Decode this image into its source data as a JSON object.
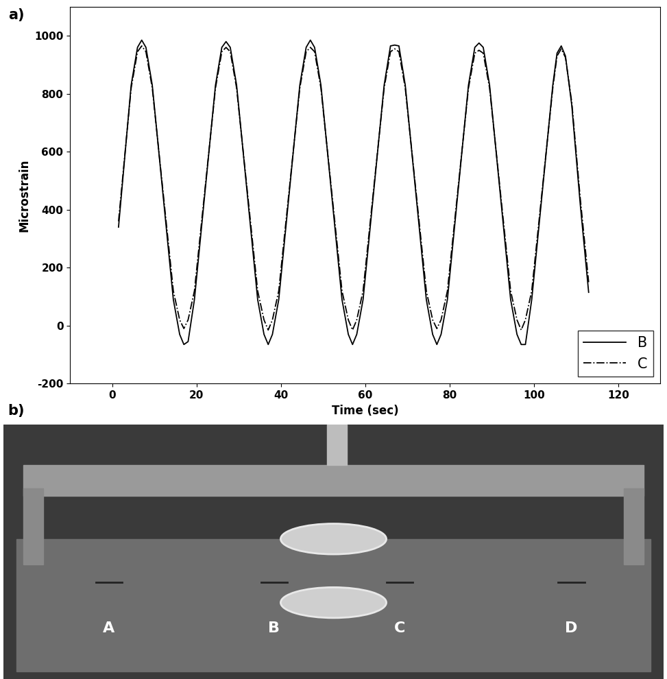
{
  "chart_data": {
    "type": "line",
    "xlabel": "Time (sec)",
    "ylabel": "Microstrain",
    "x": [
      1.5,
      4.5,
      6,
      7,
      8,
      9.5,
      12,
      14.5,
      16,
      17,
      18,
      19.5,
      22,
      24.5,
      26,
      27,
      28,
      29.5,
      32,
      34.5,
      36,
      37,
      38,
      39.5,
      42,
      44.5,
      46,
      47,
      48,
      49.5,
      52,
      54.5,
      56,
      57,
      58,
      59.5,
      62,
      64.5,
      66,
      67,
      68,
      69.5,
      72,
      74.5,
      76,
      77,
      78,
      79.5,
      82,
      84.5,
      86,
      87,
      88,
      89.5,
      92,
      94.5,
      96,
      97,
      98,
      99.5,
      102,
      104.5,
      105.5,
      106.5,
      107.5,
      109,
      111,
      113
    ],
    "series": [
      {
        "name": "B",
        "color": "#000000",
        "line_style": "solid",
        "values": [
          340,
          830,
          960,
          985,
          960,
          830,
          460,
          90,
          -30,
          -65,
          -55,
          90,
          460,
          830,
          960,
          980,
          960,
          830,
          460,
          90,
          -30,
          -65,
          -30,
          90,
          460,
          830,
          960,
          985,
          960,
          830,
          460,
          90,
          -30,
          -65,
          -30,
          90,
          460,
          830,
          965,
          968,
          965,
          830,
          460,
          90,
          -30,
          -65,
          -30,
          90,
          460,
          830,
          960,
          975,
          960,
          830,
          460,
          90,
          -30,
          -65,
          -65,
          90,
          460,
          830,
          940,
          965,
          930,
          760,
          420,
          115
        ]
      },
      {
        "name": "C",
        "color": "#000000",
        "line_style": "dashdot",
        "values": [
          360,
          820,
          945,
          965,
          945,
          820,
          470,
          120,
          20,
          -10,
          20,
          120,
          470,
          820,
          945,
          960,
          945,
          820,
          470,
          120,
          20,
          -15,
          20,
          120,
          470,
          820,
          945,
          960,
          945,
          820,
          470,
          120,
          20,
          -15,
          20,
          120,
          470,
          820,
          945,
          955,
          945,
          820,
          470,
          120,
          20,
          -10,
          20,
          120,
          470,
          820,
          940,
          950,
          940,
          820,
          470,
          120,
          20,
          -15,
          20,
          120,
          470,
          820,
          930,
          955,
          925,
          770,
          440,
          150
        ]
      }
    ],
    "xlim": [
      -10,
      130
    ],
    "xticks": [
      0,
      20,
      40,
      60,
      80,
      100,
      120
    ],
    "ylim": [
      -200,
      1100
    ],
    "yticks": [
      -200,
      0,
      200,
      400,
      600,
      800,
      1000
    ],
    "grid": false,
    "legend": "lower right"
  },
  "panel_labels": [
    "a)",
    "b)"
  ],
  "photo": {
    "labels": [
      "A",
      "B",
      "C",
      "D"
    ]
  }
}
